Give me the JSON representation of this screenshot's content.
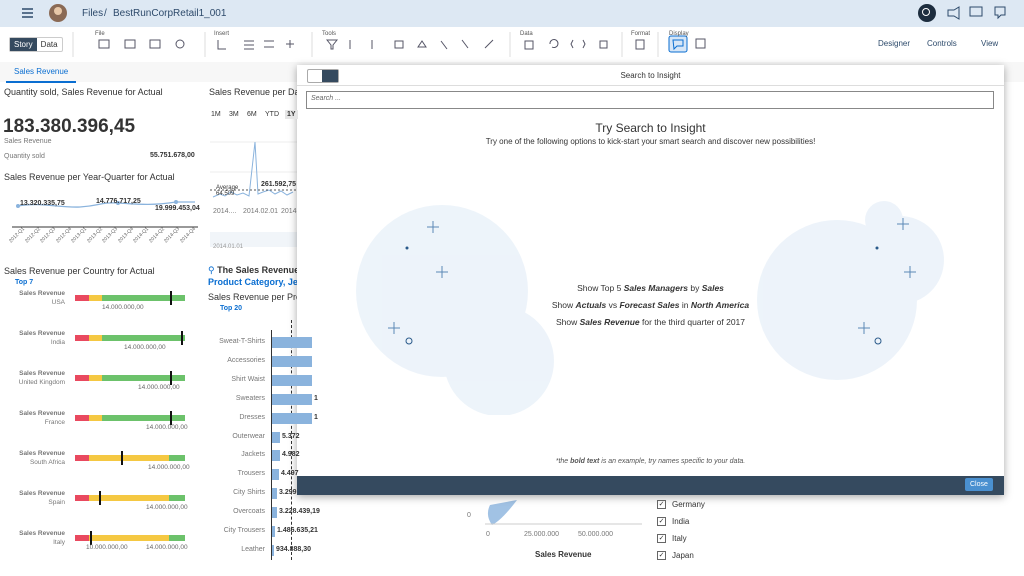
{
  "shell": {
    "files": "Files",
    "separator": "/",
    "story": "BestRunCorpRetail1_001"
  },
  "toolbar": {
    "tabs": [
      "Story",
      "Data"
    ],
    "groups": [
      "File",
      "Insert",
      "Tools",
      "Data",
      "Format",
      "Display"
    ],
    "right": [
      "Designer",
      "Controls",
      "View"
    ]
  },
  "page_tab": "Sales Revenue",
  "kpi": {
    "title": "Quantity sold, Sales Revenue for Actual",
    "value": "183.380.396,45",
    "label": "Sales Revenue",
    "sub_label": "Quantity sold",
    "sub_value": "55.751.678,00"
  },
  "quarter_chart": {
    "title": "Sales Revenue per Year-Quarter for Actual",
    "labels": [
      "13.320.335,75",
      "14.776.717,25",
      "19.999.453,04"
    ],
    "categories": [
      "2012-Q1",
      "2012-Q2",
      "2012-Q3",
      "2012-Q4",
      "2013-Q1",
      "2013-Q2",
      "2013-Q3",
      "2013-Q4",
      "2014-Q1",
      "2014-Q2",
      "2014-Q3",
      "2014-Q4"
    ]
  },
  "country_chart": {
    "title": "Sales Revenue per Country for Actual",
    "filter": "Top 7",
    "measure": "Sales Revenue",
    "rows": [
      {
        "country": "USA",
        "target": "14.000.000,00"
      },
      {
        "country": "India",
        "target": "14.000.000,00"
      },
      {
        "country": "United Kingdom",
        "target": "14.000.000,00"
      },
      {
        "country": "France",
        "target": "14.000.000,00"
      },
      {
        "country": "South Africa",
        "target": "14.000.000,00"
      },
      {
        "country": "Spain",
        "target": "14.000.000,00"
      },
      {
        "country": "Italy",
        "target": "14.000.000,00",
        "target2": "10.000.000,00"
      }
    ]
  },
  "date_chart": {
    "title": "Sales Revenue per Dat",
    "ranges": [
      "1M",
      "3M",
      "6M",
      "YTD",
      "1Y"
    ],
    "peak": "261.592,75",
    "average": "Average",
    "average_value": "64.509",
    "x_labels": [
      "2014....",
      "2014.02.01",
      "2014"
    ],
    "x_label2": "2014.01.01"
  },
  "insight": {
    "prefix": "The Sales Revenue",
    "line2": "Product Category, Jew"
  },
  "product_chart": {
    "title": "Sales Revenue per Pro",
    "filter": "Top 20",
    "categories": [
      "Sweat-T-Shirts",
      "Accessories",
      "Shirt Waist",
      "Sweaters",
      "Dresses",
      "Outerwear",
      "Jackets",
      "Trousers",
      "City Shirts",
      "Overcoats",
      "City Trousers",
      "Leather"
    ],
    "value_labels": [
      null,
      null,
      null,
      "1",
      "1",
      "5.372",
      "4.982",
      "4.497",
      "3.299",
      "3.228.439,19",
      "1.486.635,21",
      "934.888,30"
    ]
  },
  "scatter": {
    "yticks": [
      "0"
    ],
    "xticks": [
      "25.000.000",
      "50.000.000"
    ],
    "x_title": "Sales Revenue"
  },
  "checklist": [
    "Germany",
    "India",
    "Italy",
    "Japan"
  ],
  "dialog": {
    "title": "Search to Insight",
    "placeholder": "Search ...",
    "heading": "Try Search to Insight",
    "intro": "Try one of the following options to kick-start your smart search and discover new possibilities!",
    "suggestions": [
      [
        {
          "text": "Show Top 5 "
        },
        {
          "text": "Sales Managers",
          "bold": true
        },
        {
          "text": " by "
        },
        {
          "text": "Sales",
          "bold": true
        }
      ],
      [
        {
          "text": "Show "
        },
        {
          "text": "Actuals",
          "bold": true
        },
        {
          "text": " vs "
        },
        {
          "text": "Forecast Sales",
          "bold": true
        },
        {
          "text": " in "
        },
        {
          "text": "North America",
          "bold": true
        }
      ],
      [
        {
          "text": "Show "
        },
        {
          "text": "Sales Revenue",
          "bold": true
        },
        {
          "text": " for the third quarter of 2017"
        }
      ]
    ],
    "footnote": [
      {
        "text": "*the "
      },
      {
        "text": "bold text",
        "bold": true
      },
      {
        "text": " is an example, try names specific to your data."
      }
    ],
    "close": "Close"
  }
}
